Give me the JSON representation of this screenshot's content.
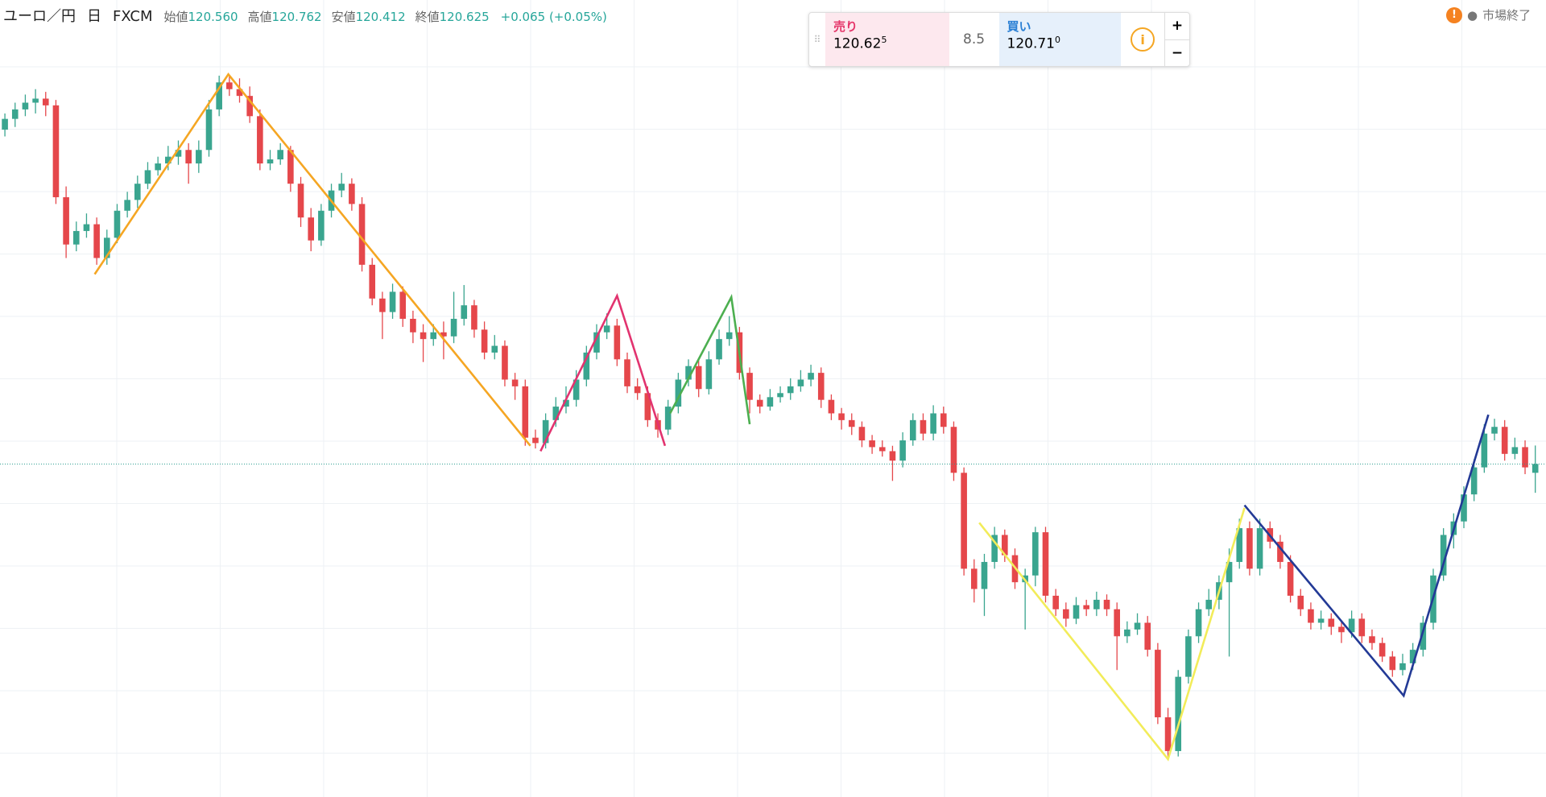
{
  "header": {
    "symbol": "ユーロ／円",
    "interval": "日",
    "source": "FXCM",
    "stats": [
      {
        "label": "始値",
        "value": "120.560"
      },
      {
        "label": "高値",
        "value": "120.762"
      },
      {
        "label": "安値",
        "value": "120.412"
      },
      {
        "label": "終値",
        "value": "120.625"
      }
    ],
    "change": "+0.065 (+0.05%)"
  },
  "trade": {
    "sell_label": "売り",
    "sell_price": "120.62",
    "sell_sup": "5",
    "spread": "8.5",
    "buy_label": "買い",
    "buy_price": "120.71",
    "buy_sup": "0",
    "plus": "+",
    "minus": "−",
    "info": "i"
  },
  "status": {
    "icon": "!",
    "text": "市場終了"
  },
  "chart_data": {
    "type": "candlestick",
    "up_color": "#3aa58f",
    "down_color": "#e5474b",
    "current_price": 120.625,
    "current_color": "#2a9d8f",
    "xlim": [
      -0.48,
      151.05
    ],
    "ylim": [
      118.16,
      124.06
    ],
    "candles": [
      [
        123.1,
        123.22,
        123.05,
        123.18
      ],
      [
        123.18,
        123.3,
        123.12,
        123.25
      ],
      [
        123.25,
        123.36,
        123.2,
        123.3
      ],
      [
        123.3,
        123.4,
        123.22,
        123.33
      ],
      [
        123.33,
        123.38,
        123.2,
        123.28
      ],
      [
        123.28,
        123.32,
        122.55,
        122.6
      ],
      [
        122.6,
        122.68,
        122.15,
        122.25
      ],
      [
        122.25,
        122.42,
        122.2,
        122.35
      ],
      [
        122.35,
        122.48,
        122.3,
        122.4
      ],
      [
        122.4,
        122.45,
        122.1,
        122.15
      ],
      [
        122.15,
        122.36,
        122.1,
        122.3
      ],
      [
        122.3,
        122.55,
        122.26,
        122.5
      ],
      [
        122.5,
        122.64,
        122.45,
        122.58
      ],
      [
        122.58,
        122.76,
        122.52,
        122.7
      ],
      [
        122.7,
        122.86,
        122.66,
        122.8
      ],
      [
        122.8,
        122.9,
        122.76,
        122.85
      ],
      [
        122.85,
        122.98,
        122.8,
        122.9
      ],
      [
        122.9,
        123.02,
        122.84,
        122.95
      ],
      [
        122.95,
        123.0,
        122.7,
        122.85
      ],
      [
        122.85,
        123.02,
        122.78,
        122.95
      ],
      [
        122.95,
        123.32,
        122.9,
        123.25
      ],
      [
        123.25,
        123.5,
        123.2,
        123.45
      ],
      [
        123.45,
        123.5,
        123.35,
        123.4
      ],
      [
        123.4,
        123.48,
        123.3,
        123.35
      ],
      [
        123.35,
        123.42,
        123.15,
        123.2
      ],
      [
        123.2,
        123.25,
        122.8,
        122.85
      ],
      [
        122.85,
        122.95,
        122.8,
        122.88
      ],
      [
        122.88,
        123.0,
        122.84,
        122.95
      ],
      [
        122.95,
        122.98,
        122.64,
        122.7
      ],
      [
        122.7,
        122.75,
        122.38,
        122.45
      ],
      [
        122.45,
        122.52,
        122.2,
        122.28
      ],
      [
        122.28,
        122.55,
        122.24,
        122.5
      ],
      [
        122.5,
        122.7,
        122.45,
        122.65
      ],
      [
        122.65,
        122.78,
        122.6,
        122.7
      ],
      [
        122.7,
        122.74,
        122.5,
        122.55
      ],
      [
        122.55,
        122.6,
        122.05,
        122.1
      ],
      [
        122.1,
        122.15,
        121.8,
        121.85
      ],
      [
        121.85,
        121.9,
        121.55,
        121.75
      ],
      [
        121.75,
        121.96,
        121.7,
        121.9
      ],
      [
        121.9,
        121.94,
        121.64,
        121.7
      ],
      [
        121.7,
        121.76,
        121.52,
        121.6
      ],
      [
        121.6,
        121.66,
        121.38,
        121.55
      ],
      [
        121.55,
        121.66,
        121.5,
        121.6
      ],
      [
        121.6,
        121.68,
        121.4,
        121.57
      ],
      [
        121.57,
        121.9,
        121.52,
        121.7
      ],
      [
        121.7,
        121.95,
        121.65,
        121.8
      ],
      [
        121.8,
        121.84,
        121.56,
        121.62
      ],
      [
        121.62,
        121.68,
        121.4,
        121.45
      ],
      [
        121.45,
        121.58,
        121.4,
        121.5
      ],
      [
        121.5,
        121.54,
        121.2,
        121.25
      ],
      [
        121.25,
        121.3,
        121.1,
        121.2
      ],
      [
        121.2,
        121.25,
        120.76,
        120.82
      ],
      [
        120.82,
        120.88,
        120.74,
        120.78
      ],
      [
        120.78,
        121.0,
        120.74,
        120.95
      ],
      [
        120.95,
        121.12,
        120.9,
        121.05
      ],
      [
        121.05,
        121.2,
        121.0,
        121.1
      ],
      [
        121.1,
        121.32,
        121.05,
        121.25
      ],
      [
        121.25,
        121.5,
        121.2,
        121.45
      ],
      [
        121.45,
        121.66,
        121.4,
        121.6
      ],
      [
        121.6,
        121.74,
        121.55,
        121.65
      ],
      [
        121.65,
        121.7,
        121.35,
        121.4
      ],
      [
        121.4,
        121.45,
        121.15,
        121.2
      ],
      [
        121.2,
        121.26,
        121.1,
        121.15
      ],
      [
        121.15,
        121.2,
        120.9,
        120.95
      ],
      [
        120.95,
        121.0,
        120.82,
        120.88
      ],
      [
        120.88,
        121.1,
        120.84,
        121.05
      ],
      [
        121.05,
        121.3,
        121.0,
        121.25
      ],
      [
        121.25,
        121.4,
        121.2,
        121.35
      ],
      [
        121.35,
        121.4,
        121.12,
        121.18
      ],
      [
        121.18,
        121.46,
        121.14,
        121.4
      ],
      [
        121.4,
        121.62,
        121.36,
        121.55
      ],
      [
        121.55,
        121.72,
        121.5,
        121.6
      ],
      [
        121.6,
        121.64,
        121.25,
        121.3
      ],
      [
        121.3,
        121.34,
        121.0,
        121.1
      ],
      [
        121.1,
        121.14,
        121.0,
        121.05
      ],
      [
        121.05,
        121.18,
        121.02,
        121.12
      ],
      [
        121.12,
        121.2,
        121.08,
        121.15
      ],
      [
        121.15,
        121.26,
        121.1,
        121.2
      ],
      [
        121.2,
        121.32,
        121.16,
        121.25
      ],
      [
        121.25,
        121.36,
        121.2,
        121.3
      ],
      [
        121.3,
        121.34,
        121.04,
        121.1
      ],
      [
        121.1,
        121.14,
        120.95,
        121.0
      ],
      [
        121.0,
        121.04,
        120.88,
        120.95
      ],
      [
        120.95,
        121.0,
        120.84,
        120.9
      ],
      [
        120.9,
        120.94,
        120.75,
        120.8
      ],
      [
        120.8,
        120.84,
        120.7,
        120.75
      ],
      [
        120.75,
        120.8,
        120.68,
        120.72
      ],
      [
        120.72,
        120.76,
        120.5,
        120.65
      ],
      [
        120.65,
        120.86,
        120.6,
        120.8
      ],
      [
        120.8,
        121.0,
        120.76,
        120.95
      ],
      [
        120.95,
        121.0,
        120.8,
        120.85
      ],
      [
        120.85,
        121.06,
        120.8,
        121.0
      ],
      [
        121.0,
        121.05,
        120.85,
        120.9
      ],
      [
        120.9,
        120.94,
        120.5,
        120.56
      ],
      [
        120.56,
        120.6,
        119.8,
        119.85
      ],
      [
        119.85,
        119.92,
        119.6,
        119.7
      ],
      [
        119.7,
        119.96,
        119.5,
        119.9
      ],
      [
        119.9,
        120.16,
        119.85,
        120.1
      ],
      [
        120.1,
        120.14,
        119.9,
        119.95
      ],
      [
        119.95,
        120.0,
        119.7,
        119.75
      ],
      [
        119.75,
        119.85,
        119.4,
        119.8
      ],
      [
        119.8,
        120.16,
        119.72,
        120.12
      ],
      [
        120.12,
        120.16,
        119.6,
        119.65
      ],
      [
        119.65,
        119.7,
        119.5,
        119.55
      ],
      [
        119.55,
        119.6,
        119.42,
        119.48
      ],
      [
        119.48,
        119.64,
        119.44,
        119.58
      ],
      [
        119.58,
        119.62,
        119.5,
        119.55
      ],
      [
        119.55,
        119.68,
        119.5,
        119.62
      ],
      [
        119.62,
        119.66,
        119.5,
        119.55
      ],
      [
        119.55,
        119.6,
        119.1,
        119.35
      ],
      [
        119.35,
        119.46,
        119.3,
        119.4
      ],
      [
        119.4,
        119.52,
        119.36,
        119.45
      ],
      [
        119.45,
        119.5,
        119.2,
        119.25
      ],
      [
        119.25,
        119.3,
        118.7,
        118.75
      ],
      [
        118.75,
        118.82,
        118.44,
        118.5
      ],
      [
        118.5,
        119.1,
        118.46,
        119.05
      ],
      [
        119.05,
        119.4,
        119.0,
        119.35
      ],
      [
        119.35,
        119.6,
        119.3,
        119.55
      ],
      [
        119.55,
        119.7,
        119.5,
        119.62
      ],
      [
        119.62,
        119.8,
        119.55,
        119.75
      ],
      [
        119.75,
        120.0,
        119.2,
        119.9
      ],
      [
        119.9,
        120.22,
        119.85,
        120.15
      ],
      [
        120.15,
        120.2,
        119.8,
        119.85
      ],
      [
        119.85,
        120.22,
        119.8,
        120.15
      ],
      [
        120.15,
        120.2,
        120.0,
        120.05
      ],
      [
        120.05,
        120.1,
        119.85,
        119.9
      ],
      [
        119.9,
        119.95,
        119.6,
        119.65
      ],
      [
        119.65,
        119.7,
        119.5,
        119.55
      ],
      [
        119.55,
        119.6,
        119.4,
        119.45
      ],
      [
        119.45,
        119.54,
        119.4,
        119.48
      ],
      [
        119.48,
        119.52,
        119.36,
        119.42
      ],
      [
        119.42,
        119.46,
        119.3,
        119.38
      ],
      [
        119.38,
        119.54,
        119.34,
        119.48
      ],
      [
        119.48,
        119.52,
        119.3,
        119.35
      ],
      [
        119.35,
        119.4,
        119.25,
        119.3
      ],
      [
        119.3,
        119.34,
        119.16,
        119.2
      ],
      [
        119.2,
        119.24,
        119.05,
        119.1
      ],
      [
        119.1,
        119.22,
        119.06,
        119.15
      ],
      [
        119.15,
        119.3,
        119.1,
        119.25
      ],
      [
        119.25,
        119.5,
        119.2,
        119.45
      ],
      [
        119.45,
        119.85,
        119.4,
        119.8
      ],
      [
        119.8,
        120.15,
        119.76,
        120.1
      ],
      [
        120.1,
        120.26,
        120.0,
        120.2
      ],
      [
        120.2,
        120.46,
        120.15,
        120.4
      ],
      [
        120.4,
        120.66,
        120.35,
        120.6
      ],
      [
        120.6,
        120.92,
        120.56,
        120.85
      ],
      [
        120.85,
        120.96,
        120.8,
        120.9
      ],
      [
        120.9,
        120.95,
        120.65,
        120.7
      ],
      [
        120.7,
        120.82,
        120.66,
        120.75
      ],
      [
        120.75,
        120.8,
        120.55,
        120.6
      ],
      [
        120.56,
        120.762,
        120.412,
        120.625
      ]
    ],
    "drawings": [
      {
        "color": "#f5a623",
        "x": [
          8.8,
          21.9,
          51.5
        ],
        "values": [
          122.03,
          123.51,
          120.76
        ]
      },
      {
        "color": "#e2336f",
        "x": [
          52.5,
          60,
          64.7
        ],
        "values": [
          120.72,
          121.87,
          120.76
        ]
      },
      {
        "color": "#4caf50",
        "x": [
          65.2,
          71.2,
          73
        ],
        "values": [
          121.0,
          121.86,
          120.92
        ]
      },
      {
        "color": "#f2ec5a",
        "x": [
          95.5,
          114,
          121.5
        ],
        "values": [
          120.19,
          118.44,
          120.3
        ]
      },
      {
        "color": "#233a96",
        "x": [
          121.5,
          137.1,
          145.4
        ],
        "values": [
          120.32,
          118.91,
          120.99
        ]
      }
    ]
  }
}
